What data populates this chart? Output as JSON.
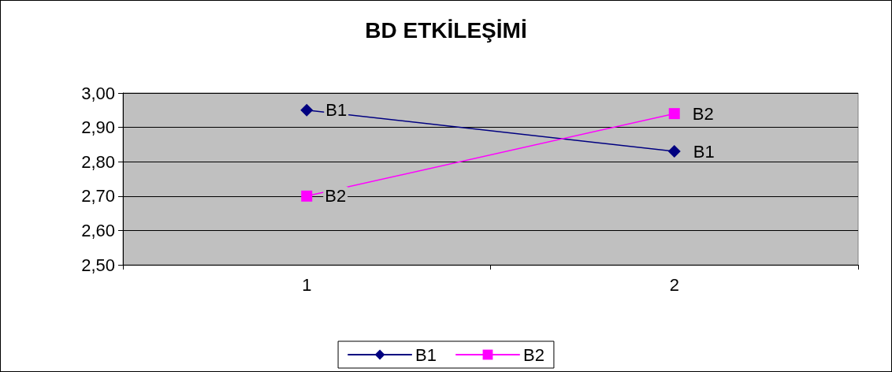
{
  "chart_data": {
    "type": "line",
    "title": "BD ETKİLEŞİMİ",
    "categories": [
      "1",
      "2"
    ],
    "series": [
      {
        "name": "B1",
        "color": "#000080",
        "marker": "diamond",
        "values": [
          2.95,
          2.83
        ]
      },
      {
        "name": "B2",
        "color": "#ff00ff",
        "marker": "square",
        "values": [
          2.7,
          2.94
        ]
      }
    ],
    "ylim": [
      2.5,
      3.0
    ],
    "yticks": [
      {
        "value": 2.5,
        "label": "2,50"
      },
      {
        "value": 2.6,
        "label": "2,60"
      },
      {
        "value": 2.7,
        "label": "2,70"
      },
      {
        "value": 2.8,
        "label": "2,80"
      },
      {
        "value": 2.9,
        "label": "2,90"
      },
      {
        "value": 3.0,
        "label": "3,00"
      }
    ],
    "grid": "y",
    "legend": "bottom",
    "line_style": "solid"
  }
}
